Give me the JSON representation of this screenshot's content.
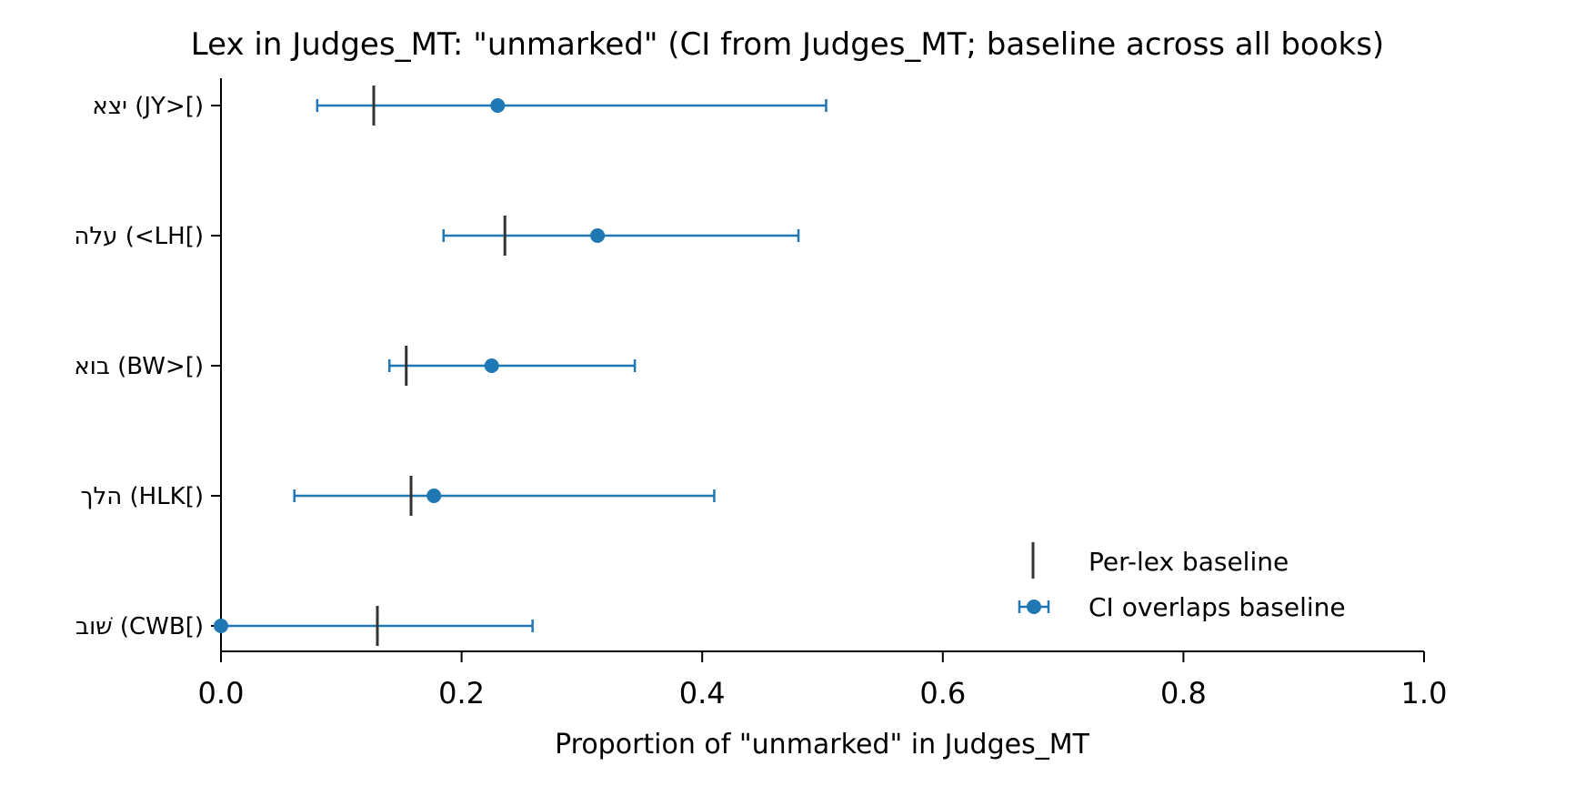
{
  "chart_data": {
    "type": "scatter",
    "title": "Lex in Judges_MT: \"unmarked\" (CI from Judges_MT; baseline across all books)",
    "xlabel": "Proportion of \"unmarked\" in Judges_MT",
    "ylabel": "",
    "xlim": [
      0.0,
      1.0
    ],
    "xticks": [
      "0.0",
      "0.2",
      "0.4",
      "0.6",
      "0.8",
      "1.0"
    ],
    "grid": false,
    "legend_position": "lower-right",
    "colors": {
      "point": "#1f77b4",
      "baseline": "#333333"
    },
    "categories": [
      {
        "label": "יצא (JY>[)",
        "value": 0.23,
        "ci_low": 0.08,
        "ci_high": 0.503,
        "baseline": 0.127
      },
      {
        "label": "עלה (<LH[)",
        "value": 0.313,
        "ci_low": 0.185,
        "ci_high": 0.48,
        "baseline": 0.236
      },
      {
        "label": "בוא (BW>[)",
        "value": 0.225,
        "ci_low": 0.14,
        "ci_high": 0.344,
        "baseline": 0.154
      },
      {
        "label": "הלך (HLK[)",
        "value": 0.177,
        "ci_low": 0.061,
        "ci_high": 0.41,
        "baseline": 0.158
      },
      {
        "label": "שׁוב (CWB[)",
        "value": 0.0,
        "ci_low": 0.0,
        "ci_high": 0.259,
        "baseline": 0.13
      }
    ],
    "legend": [
      {
        "key": "baseline",
        "label": "Per-lex baseline"
      },
      {
        "key": "ci",
        "label": "CI overlaps baseline"
      }
    ]
  }
}
